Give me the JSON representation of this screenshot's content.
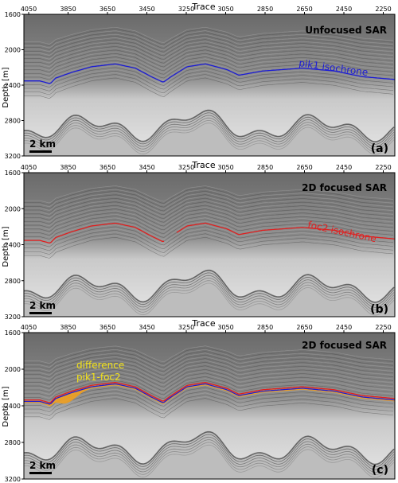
{
  "axes": {
    "x_label": "Trace",
    "y_label": "Depth [m]",
    "x_ticks": [
      "4050",
      "3850",
      "3650",
      "3450",
      "3250",
      "3050",
      "2850",
      "2650",
      "2450",
      "2250"
    ],
    "y_ticks": [
      "1600",
      "2000",
      "2400",
      "2800",
      "3200"
    ]
  },
  "panels": [
    {
      "id": "a",
      "title": "Unfocused SAR",
      "panel_letter": "(a)",
      "scale_bar": "2 km",
      "annotations": [
        {
          "text": "pik1 isochrone",
          "color": "#1c1cd6"
        }
      ],
      "layers": [
        "pik1"
      ]
    },
    {
      "id": "b",
      "title": "2D focused SAR",
      "panel_letter": "(b)",
      "scale_bar": "2 km",
      "annotations": [
        {
          "text": "foc2 isochrone",
          "color": "#e02020"
        }
      ],
      "layers": [
        "foc2"
      ]
    },
    {
      "id": "c",
      "title": "2D focused SAR",
      "panel_letter": "(c)",
      "scale_bar": "2 km",
      "annotations": [
        {
          "text": "difference",
          "color": "#f2e21a"
        },
        {
          "text": "pik1-foc2",
          "color": "#f2e21a"
        }
      ],
      "layers": [
        "difference",
        "pik1",
        "foc2"
      ]
    }
  ],
  "colors": {
    "pik1": "#1c1cd6",
    "foc2": "#e02020",
    "difference": "#f0a020",
    "radargram_light": "#d8d8d8",
    "radargram_dark": "#555555"
  }
}
